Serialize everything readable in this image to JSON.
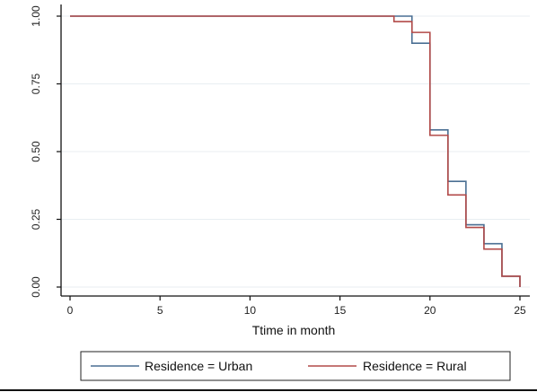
{
  "chart_data": {
    "type": "line",
    "title": "",
    "xlabel": "Ttime in month",
    "ylabel": "",
    "xlim": [
      0,
      25
    ],
    "ylim": [
      0,
      1
    ],
    "x_ticks": [
      "0",
      "5",
      "10",
      "15",
      "20",
      "25"
    ],
    "y_ticks": [
      "0.00",
      "0.25",
      "0.50",
      "0.75",
      "1.00"
    ],
    "grid": true,
    "legend_position": "bottom",
    "step": true,
    "series": [
      {
        "name": "Residence = Urban",
        "color": "#4a6f93",
        "points": [
          [
            0,
            1.0
          ],
          [
            18,
            1.0
          ],
          [
            19,
            0.9
          ],
          [
            20,
            0.58
          ],
          [
            21,
            0.39
          ],
          [
            22,
            0.23
          ],
          [
            23,
            0.16
          ],
          [
            24,
            0.04
          ],
          [
            25,
            0.0
          ]
        ]
      },
      {
        "name": "Residence = Rural",
        "color": "#b24a48",
        "points": [
          [
            0,
            1.0
          ],
          [
            17,
            1.0
          ],
          [
            18,
            0.98
          ],
          [
            19,
            0.94
          ],
          [
            20,
            0.56
          ],
          [
            21,
            0.34
          ],
          [
            22,
            0.22
          ],
          [
            23,
            0.14
          ],
          [
            24,
            0.04
          ],
          [
            25,
            0.0
          ]
        ]
      }
    ]
  }
}
